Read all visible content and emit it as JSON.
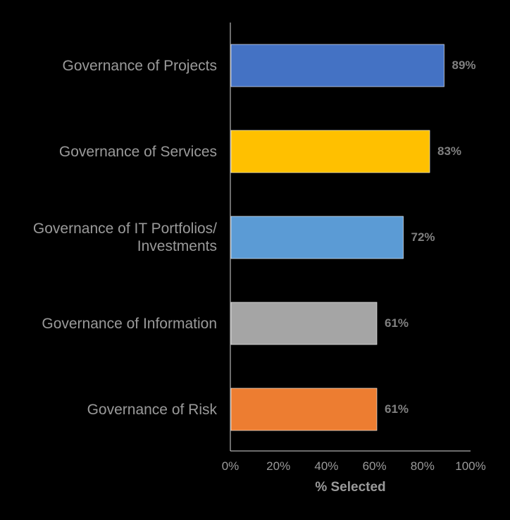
{
  "chart_data": {
    "type": "bar",
    "orientation": "horizontal",
    "categories": [
      "Governance of Projects",
      "Governance of Services",
      "Governance of IT Portfolios/\nInvestments",
      "Governance of Information",
      "Governance of Risk"
    ],
    "values": [
      89,
      83,
      72,
      61,
      61
    ],
    "value_labels": [
      "89%",
      "83%",
      "72%",
      "61%",
      "61%"
    ],
    "colors": [
      "#4472C4",
      "#FFC000",
      "#5B9BD5",
      "#A5A5A5",
      "#ED7D31"
    ],
    "xlabel": "% Selected",
    "xlim": [
      0,
      100
    ],
    "xticks": [
      "0%",
      "20%",
      "40%",
      "60%",
      "80%",
      "100%"
    ],
    "grid": false,
    "background": "#000000"
  }
}
